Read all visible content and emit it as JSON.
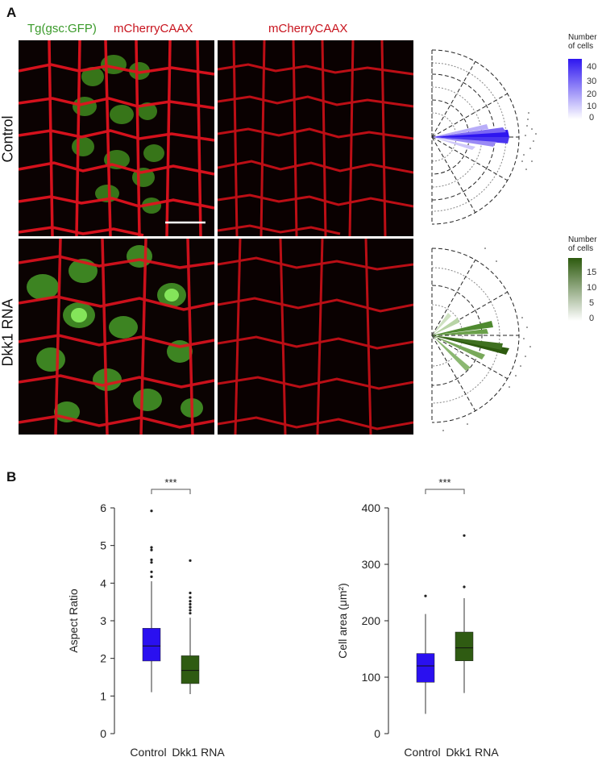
{
  "panel_a": {
    "letter": "A",
    "header_merge_green": "Tg(gsc:GFP)",
    "header_merge_red": "mCherryCAAX",
    "header_red_only": "mCherryCAAX",
    "rows": [
      {
        "label": "Control"
      },
      {
        "label": "Dkk1 RNA"
      }
    ],
    "legends": [
      {
        "title_line1": "Number",
        "title_line2": "of cells",
        "ticks": [
          "40",
          "30",
          "20",
          "10",
          "0"
        ],
        "color_high": "#2e16f0",
        "color_low": "#ffffff"
      },
      {
        "title_line1": "Number",
        "title_line2": "of cells",
        "ticks": [
          "15",
          "10",
          "5",
          "0"
        ],
        "color_high": "#2d5a0e",
        "color_low": "#ffffff"
      }
    ]
  },
  "panel_b": {
    "letter": "B",
    "significance": "***",
    "colors": {
      "control": "#2a10f0",
      "dkk1": "#2f5b12"
    },
    "chart_data": [
      {
        "type": "box",
        "ylabel": "Aspect Ratio",
        "ylim": [
          0,
          6
        ],
        "yticks": [
          "0",
          "1",
          "2",
          "3",
          "4",
          "5",
          "6"
        ],
        "categories": [
          "Control",
          "Dkk1 RNA"
        ],
        "boxes": [
          {
            "name": "Control",
            "min": 1.1,
            "q1": 1.93,
            "median": 2.33,
            "q3": 2.8,
            "max": 4.05,
            "outliers": [
              4.17,
              4.3,
              4.55,
              4.62,
              4.88,
              4.95,
              5.92
            ]
          },
          {
            "name": "Dkk1 RNA",
            "min": 1.05,
            "q1": 1.33,
            "median": 1.68,
            "q3": 2.07,
            "max": 3.08,
            "outliers": [
              3.2,
              3.28,
              3.36,
              3.44,
              3.52,
              3.62,
              3.74,
              4.6
            ]
          }
        ]
      },
      {
        "type": "box",
        "ylabel": "Cell area (μm²)",
        "ylim": [
          0,
          400
        ],
        "yticks": [
          "0",
          "100",
          "200",
          "300",
          "400"
        ],
        "categories": [
          "Control",
          "Dkk1 RNA"
        ],
        "boxes": [
          {
            "name": "Control",
            "min": 35,
            "q1": 91,
            "median": 120,
            "q3": 142,
            "max": 212,
            "outliers": [
              244
            ]
          },
          {
            "name": "Dkk1 RNA",
            "min": 72,
            "q1": 129,
            "median": 152,
            "q3": 180,
            "max": 240,
            "outliers": [
              260,
              351
            ]
          }
        ]
      }
    ]
  }
}
